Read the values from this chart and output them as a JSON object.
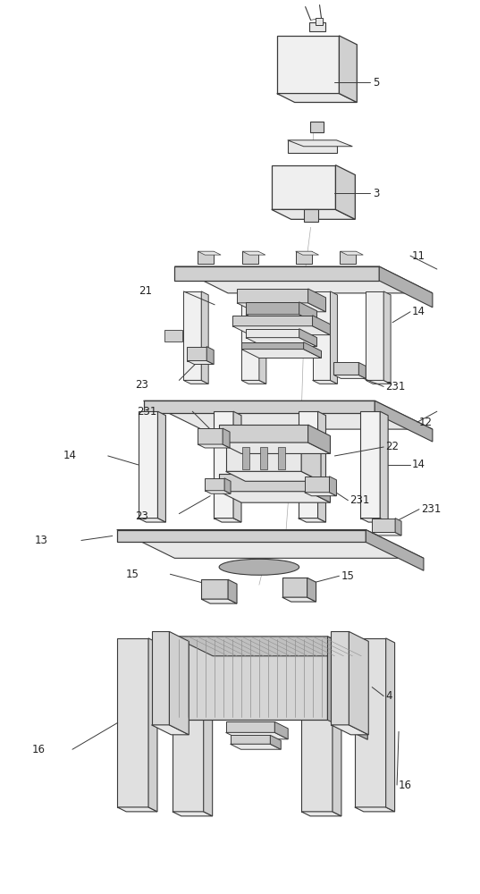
{
  "bg_color": "#ffffff",
  "line_color": "#3a3a3a",
  "label_color": "#222222",
  "figsize": [
    5.37,
    10.0
  ],
  "dpi": 100,
  "lw_main": 0.9,
  "lw_thin": 0.5,
  "gray_light": "#e8e8e8",
  "gray_mid": "#d0d0d0",
  "gray_dark": "#b0b0b0",
  "gray_body": "#c0c0c0",
  "font_size": 8.5
}
